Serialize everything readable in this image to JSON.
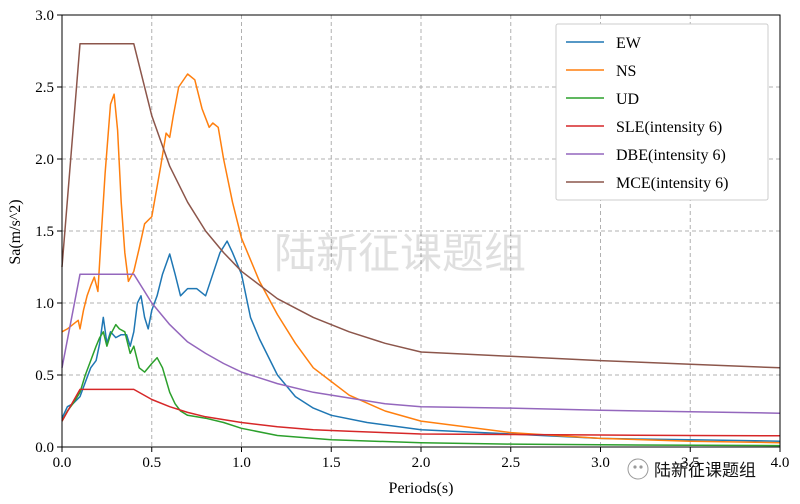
{
  "chart_data": {
    "type": "line",
    "xlabel": "Periods(s)",
    "ylabel": "Sa(m/s^2)",
    "xlim": [
      0,
      4.0
    ],
    "ylim": [
      0,
      3.0
    ],
    "xticks": [
      "0.0",
      "0.5",
      "1.0",
      "1.5",
      "2.0",
      "2.5",
      "3.0",
      "3.5",
      "4.0"
    ],
    "yticks": [
      "0.0",
      "0.5",
      "1.0",
      "1.5",
      "2.0",
      "2.5",
      "3.0"
    ],
    "grid": true,
    "legend_position": "top-right",
    "watermark": "陆新征课题组",
    "source_badge": "陆新征课题组",
    "series": [
      {
        "name": "EW",
        "color": "#1f77b4",
        "x": [
          0,
          0.03,
          0.06,
          0.1,
          0.13,
          0.16,
          0.19,
          0.21,
          0.23,
          0.25,
          0.27,
          0.3,
          0.33,
          0.36,
          0.38,
          0.4,
          0.42,
          0.44,
          0.46,
          0.48,
          0.5,
          0.53,
          0.56,
          0.6,
          0.63,
          0.66,
          0.7,
          0.75,
          0.8,
          0.84,
          0.88,
          0.92,
          0.95,
          1.0,
          1.05,
          1.1,
          1.2,
          1.3,
          1.4,
          1.5,
          1.7,
          2.0,
          2.5,
          3.0,
          3.5,
          4.0
        ],
        "y": [
          0.2,
          0.28,
          0.3,
          0.35,
          0.45,
          0.55,
          0.6,
          0.72,
          0.9,
          0.72,
          0.8,
          0.76,
          0.78,
          0.78,
          0.7,
          0.8,
          1.0,
          1.05,
          0.9,
          0.82,
          0.95,
          1.05,
          1.2,
          1.34,
          1.2,
          1.05,
          1.1,
          1.1,
          1.05,
          1.2,
          1.35,
          1.43,
          1.35,
          1.2,
          0.9,
          0.75,
          0.5,
          0.35,
          0.27,
          0.22,
          0.17,
          0.12,
          0.09,
          0.06,
          0.05,
          0.04
        ]
      },
      {
        "name": "NS",
        "color": "#ff7f0e",
        "x": [
          0,
          0.03,
          0.06,
          0.09,
          0.1,
          0.12,
          0.14,
          0.16,
          0.18,
          0.2,
          0.22,
          0.24,
          0.27,
          0.29,
          0.31,
          0.33,
          0.35,
          0.37,
          0.4,
          0.43,
          0.46,
          0.5,
          0.55,
          0.58,
          0.6,
          0.62,
          0.65,
          0.7,
          0.74,
          0.78,
          0.82,
          0.84,
          0.87,
          0.9,
          0.95,
          1.0,
          1.1,
          1.2,
          1.3,
          1.4,
          1.6,
          1.8,
          2.0,
          2.5,
          3.0,
          3.5,
          4.0
        ],
        "y": [
          0.8,
          0.82,
          0.85,
          0.88,
          0.82,
          0.95,
          1.05,
          1.12,
          1.18,
          1.08,
          1.5,
          1.9,
          2.38,
          2.45,
          2.2,
          1.7,
          1.35,
          1.15,
          1.22,
          1.38,
          1.55,
          1.6,
          1.95,
          2.18,
          2.15,
          2.3,
          2.5,
          2.59,
          2.55,
          2.35,
          2.22,
          2.25,
          2.22,
          2.0,
          1.7,
          1.45,
          1.15,
          0.92,
          0.72,
          0.55,
          0.36,
          0.25,
          0.18,
          0.1,
          0.06,
          0.04,
          0.03
        ]
      },
      {
        "name": "UD",
        "color": "#2ca02c",
        "x": [
          0,
          0.03,
          0.06,
          0.1,
          0.13,
          0.16,
          0.19,
          0.21,
          0.23,
          0.25,
          0.27,
          0.3,
          0.32,
          0.35,
          0.38,
          0.4,
          0.43,
          0.46,
          0.5,
          0.53,
          0.56,
          0.6,
          0.63,
          0.66,
          0.7,
          0.75,
          0.8,
          0.9,
          1.0,
          1.2,
          1.5,
          2.0,
          2.5,
          3.0,
          4.0
        ],
        "y": [
          0.18,
          0.25,
          0.3,
          0.38,
          0.5,
          0.6,
          0.7,
          0.76,
          0.8,
          0.7,
          0.78,
          0.85,
          0.82,
          0.8,
          0.65,
          0.7,
          0.55,
          0.52,
          0.58,
          0.62,
          0.55,
          0.38,
          0.3,
          0.25,
          0.22,
          0.21,
          0.2,
          0.17,
          0.13,
          0.08,
          0.05,
          0.03,
          0.02,
          0.015,
          0.01
        ]
      },
      {
        "name": "SLE(intensity 6)",
        "color": "#d62728",
        "x": [
          0,
          0.1,
          0.4,
          0.5,
          0.6,
          0.7,
          0.8,
          1.0,
          1.2,
          1.4,
          1.6,
          1.8,
          2.0,
          2.5,
          3.0,
          3.5,
          4.0
        ],
        "y": [
          0.18,
          0.4,
          0.4,
          0.33,
          0.28,
          0.24,
          0.21,
          0.17,
          0.14,
          0.12,
          0.11,
          0.1,
          0.09,
          0.087,
          0.083,
          0.08,
          0.078
        ]
      },
      {
        "name": "DBE(intensity 6)",
        "color": "#9467bd",
        "x": [
          0,
          0.1,
          0.4,
          0.5,
          0.6,
          0.7,
          0.8,
          0.9,
          1.0,
          1.2,
          1.4,
          1.6,
          1.8,
          2.0,
          2.5,
          3.0,
          3.5,
          4.0
        ],
        "y": [
          0.55,
          1.2,
          1.2,
          1.0,
          0.85,
          0.73,
          0.65,
          0.58,
          0.52,
          0.44,
          0.38,
          0.34,
          0.3,
          0.28,
          0.27,
          0.255,
          0.245,
          0.235
        ]
      },
      {
        "name": "MCE(intensity 6)",
        "color": "#8c564b",
        "x": [
          0,
          0.1,
          0.4,
          0.5,
          0.6,
          0.7,
          0.8,
          0.9,
          1.0,
          1.2,
          1.4,
          1.6,
          1.8,
          2.0,
          2.5,
          3.0,
          3.5,
          4.0
        ],
        "y": [
          1.25,
          2.8,
          2.8,
          2.3,
          1.95,
          1.7,
          1.5,
          1.35,
          1.22,
          1.03,
          0.9,
          0.8,
          0.72,
          0.66,
          0.63,
          0.6,
          0.575,
          0.55
        ]
      }
    ]
  }
}
